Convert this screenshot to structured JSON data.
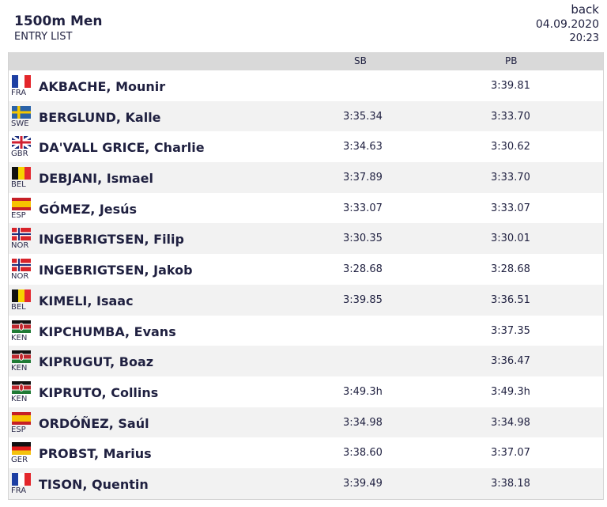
{
  "header": {
    "title": "1500m Men",
    "subtitle": "ENTRY LIST",
    "back_label": "back",
    "date": "04.09.2020",
    "time": "20:23"
  },
  "columns": {
    "sb": "SB",
    "pb": "PB"
  },
  "entries": [
    {
      "country": "FRA",
      "name": "AKBACHE, Mounir",
      "sb": "",
      "pb": "3:39.81"
    },
    {
      "country": "SWE",
      "name": "BERGLUND, Kalle",
      "sb": "3:35.34",
      "pb": "3:33.70"
    },
    {
      "country": "GBR",
      "name": "DA'VALL GRICE, Charlie",
      "sb": "3:34.63",
      "pb": "3:30.62"
    },
    {
      "country": "BEL",
      "name": "DEBJANI, Ismael",
      "sb": "3:37.89",
      "pb": "3:33.70"
    },
    {
      "country": "ESP",
      "name": "GÓMEZ, Jesús",
      "sb": "3:33.07",
      "pb": "3:33.07"
    },
    {
      "country": "NOR",
      "name": "INGEBRIGTSEN, Filip",
      "sb": "3:30.35",
      "pb": "3:30.01"
    },
    {
      "country": "NOR",
      "name": "INGEBRIGTSEN, Jakob",
      "sb": "3:28.68",
      "pb": "3:28.68"
    },
    {
      "country": "BEL",
      "name": "KIMELI, Isaac",
      "sb": "3:39.85",
      "pb": "3:36.51"
    },
    {
      "country": "KEN",
      "name": "KIPCHUMBA, Evans",
      "sb": "",
      "pb": "3:37.35"
    },
    {
      "country": "KEN",
      "name": "KIPRUGUT, Boaz",
      "sb": "",
      "pb": "3:36.47"
    },
    {
      "country": "KEN",
      "name": "KIPRUTO, Collins",
      "sb": "3:49.3h",
      "pb": "3:49.3h"
    },
    {
      "country": "ESP",
      "name": "ORDÓÑEZ, Saúl",
      "sb": "3:34.98",
      "pb": "3:34.98"
    },
    {
      "country": "GER",
      "name": "PROBST, Marius",
      "sb": "3:38.60",
      "pb": "3:37.07"
    },
    {
      "country": "FRA",
      "name": "TISON, Quentin",
      "sb": "3:39.49",
      "pb": "3:38.18"
    }
  ]
}
